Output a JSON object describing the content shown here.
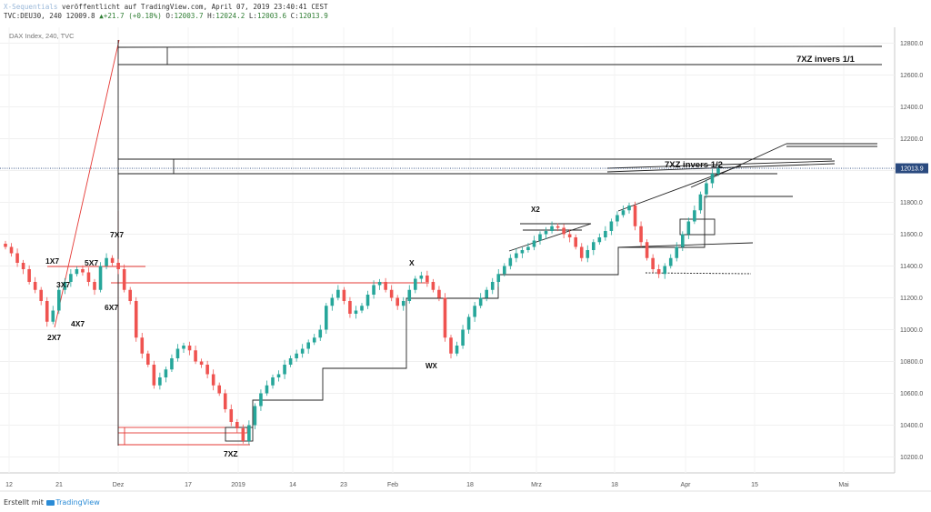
{
  "header": {
    "author": "X-Sequentials",
    "published_text": "veröffentlicht auf TradingView.com, April 07, 2019 23:40:41 CEST",
    "symbol": "TVC:DEU30, 240",
    "last_value": "12009.8",
    "change_arrow": "▲",
    "change": "+21.7 (+0.18%)",
    "o_label": "O:",
    "o_value": "12003.7",
    "h_label": "H:",
    "h_value": "12024.2",
    "l_label": "L:",
    "l_value": "12003.6",
    "c_label": "C:",
    "c_value": "12013.9"
  },
  "footer": {
    "created_with": "Erstellt mit",
    "brand": "TradingView"
  },
  "colors": {
    "up": "#26a69a",
    "down": "#ef5350",
    "red_line": "#e53935",
    "black_line": "#222222",
    "price_label_bg": "#2a4a7f"
  },
  "chart_data": {
    "type": "candlestick",
    "legend": "DAX Index, 240, TVC",
    "ylim": [
      10100,
      12900
    ],
    "yticks": [
      10200,
      10400,
      10600,
      10800,
      11000,
      11200,
      11400,
      11600,
      11800,
      12000,
      12200,
      12400,
      12600,
      12800
    ],
    "ytick_labels": [
      "10200.0",
      "10400.0",
      "10600.0",
      "10800.0",
      "11000.0",
      "11200.0",
      "11400.0",
      "11600.0",
      "11800.0",
      "12000.0",
      "12200.0",
      "12400.0",
      "12600.0",
      "12800.0"
    ],
    "xtick_labels": [
      "12",
      "21",
      "Dez",
      "17",
      "2019",
      "14",
      "23",
      "Feb",
      "18",
      "Mrz",
      "18",
      "Apr",
      "15",
      "Mai"
    ],
    "current_price": 12013.9,
    "current_price_label": "12013.9",
    "closes": [
      11520,
      11480,
      11420,
      11380,
      11300,
      11250,
      11180,
      11050,
      11120,
      11250,
      11300,
      11350,
      11380,
      11360,
      11300,
      11250,
      11400,
      11450,
      11420,
      11380,
      11250,
      11180,
      10950,
      10850,
      10780,
      10650,
      10700,
      10750,
      10820,
      10880,
      10900,
      10870,
      10800,
      10780,
      10720,
      10650,
      10600,
      10500,
      10420,
      10380,
      10300,
      10400,
      10520,
      10600,
      10650,
      10700,
      10720,
      10780,
      10820,
      10850,
      10880,
      10920,
      10950,
      11000,
      11150,
      11200,
      11250,
      11180,
      11100,
      11120,
      11150,
      11220,
      11280,
      11300,
      11250,
      11200,
      11150,
      11180,
      11250,
      11320,
      11340,
      11300,
      11250,
      11200,
      10950,
      10850,
      10900,
      11000,
      11080,
      11150,
      11200,
      11250,
      11300,
      11350,
      11400,
      11450,
      11480,
      11500,
      11520,
      11560,
      11600,
      11620,
      11650,
      11640,
      11600,
      11580,
      11520,
      11450,
      11500,
      11550,
      11580,
      11620,
      11680,
      11720,
      11750,
      11780,
      11650,
      11550,
      11450,
      11380,
      11350,
      11400,
      11450,
      11520,
      11600,
      11680,
      11750,
      11850,
      11920,
      11980,
      12013
    ],
    "annotations": [
      "1X7",
      "2X7",
      "3X7",
      "4X7",
      "5X7",
      "6X7",
      "7X7",
      "7XZ",
      "X",
      "WX",
      "X2",
      "7XZ invers 1/2",
      "7XZ invers 1/1"
    ]
  }
}
